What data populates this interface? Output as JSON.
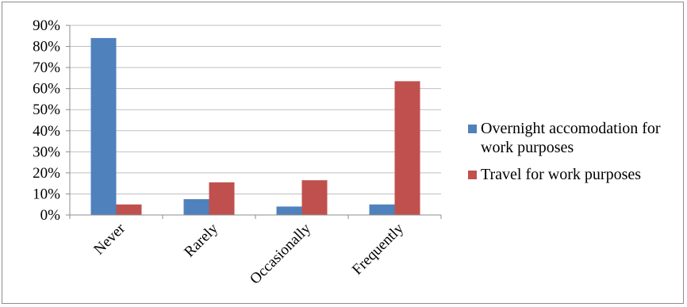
{
  "chart_data": {
    "type": "bar",
    "title": "",
    "xlabel": "",
    "ylabel": "",
    "categories": [
      "Never",
      "Rarely",
      "Occasionally",
      "Frequently"
    ],
    "series": [
      {
        "name": "Overnight accomodation for work purposes",
        "color": "#4f81bd",
        "values": [
          84,
          7.5,
          4,
          5
        ]
      },
      {
        "name": "Travel for work purposes",
        "color": "#c0504d",
        "values": [
          5,
          15.5,
          16.5,
          63.5
        ]
      }
    ],
    "ylim": [
      0,
      90
    ],
    "yticks": [
      "0%",
      "10%",
      "20%",
      "30%",
      "40%",
      "50%",
      "60%",
      "70%",
      "80%",
      "90%"
    ],
    "grid": true,
    "legend_position": "right"
  }
}
